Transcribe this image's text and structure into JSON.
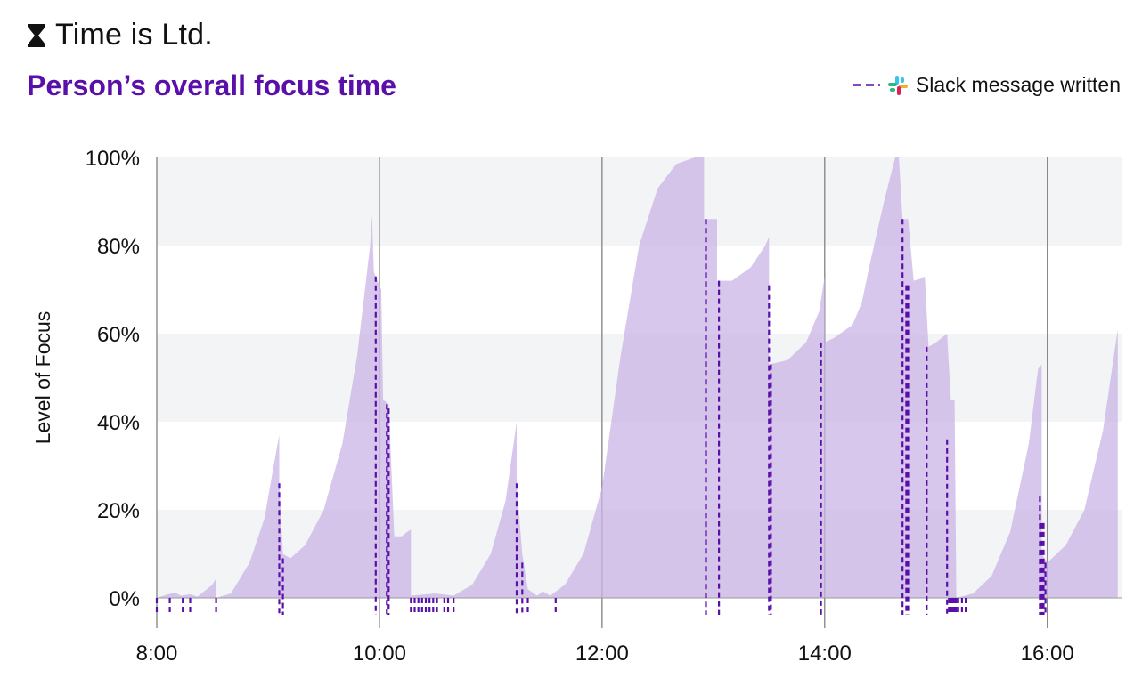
{
  "brand": {
    "name": "Time is Ltd.",
    "icon": "hourglass-icon"
  },
  "legend": {
    "label": "Slack message written",
    "icon": "slack-icon",
    "line_style": "dashed"
  },
  "colors": {
    "title": "#5a0fa8",
    "area": "#c9b4e6",
    "marker": "#5a0fa8",
    "band": "#f3f4f5",
    "grid": "#8a8a8a"
  },
  "chart_data": {
    "type": "area",
    "title": "Person’s overall focus time",
    "xlabel": "",
    "ylabel": "Level of Focus",
    "x_unit": "hours",
    "xlim": [
      "8:00",
      "16:40"
    ],
    "ylim": [
      0,
      100
    ],
    "x_ticks": [
      "8:00",
      "10:00",
      "12:00",
      "14:00",
      "16:00"
    ],
    "y_ticks": [
      "0%",
      "20%",
      "40%",
      "60%",
      "80%",
      "100%"
    ],
    "grid": true,
    "legend_position": "top-right",
    "series": [
      {
        "kind": "area",
        "points": [
          [
            "8:00",
            0
          ],
          [
            "8:06",
            0.8
          ],
          [
            "8:10",
            1.2
          ],
          [
            "8:13",
            0.5
          ],
          [
            "8:18",
            0.8
          ],
          [
            "8:22",
            0.3
          ],
          [
            "8:30",
            3
          ],
          [
            "8:32",
            4.5
          ],
          [
            "8:32",
            0
          ],
          [
            "8:40",
            1
          ],
          [
            "8:50",
            8
          ],
          [
            "8:58",
            18
          ],
          [
            "9:03",
            30
          ],
          [
            "9:06",
            37
          ],
          [
            "9:06",
            26
          ],
          [
            "9:08",
            10
          ],
          [
            "9:12",
            9
          ],
          [
            "9:20",
            12
          ],
          [
            "9:30",
            20
          ],
          [
            "9:40",
            35
          ],
          [
            "9:48",
            55
          ],
          [
            "9:55",
            80
          ],
          [
            "9:56",
            87
          ],
          [
            "9:57",
            74
          ],
          [
            "10:01",
            70
          ],
          [
            "10:02",
            45
          ],
          [
            "10:05",
            44
          ],
          [
            "10:08",
            14
          ],
          [
            "10:12",
            14
          ],
          [
            "10:15",
            15
          ],
          [
            "10:17",
            15.5
          ],
          [
            "10:17",
            0.5
          ],
          [
            "10:30",
            1
          ],
          [
            "10:40",
            0.5
          ],
          [
            "10:50",
            3
          ],
          [
            "11:00",
            10
          ],
          [
            "11:08",
            22
          ],
          [
            "11:14",
            40
          ],
          [
            "11:14",
            26
          ],
          [
            "11:17",
            10
          ],
          [
            "11:20",
            2
          ],
          [
            "11:25",
            0.5
          ],
          [
            "11:28",
            1.5
          ],
          [
            "11:32",
            0.5
          ],
          [
            "11:40",
            3
          ],
          [
            "11:50",
            10
          ],
          [
            "12:00",
            25
          ],
          [
            "12:10",
            55
          ],
          [
            "12:20",
            80
          ],
          [
            "12:30",
            93
          ],
          [
            "12:40",
            98.5
          ],
          [
            "12:50",
            100
          ],
          [
            "12:55",
            100
          ],
          [
            "12:55",
            86
          ],
          [
            "13:02",
            86
          ],
          [
            "13:02",
            72
          ],
          [
            "13:10",
            72
          ],
          [
            "13:20",
            75
          ],
          [
            "13:28",
            80
          ],
          [
            "13:30",
            82
          ],
          [
            "13:30",
            53
          ],
          [
            "13:40",
            54
          ],
          [
            "13:50",
            58
          ],
          [
            "13:57",
            65
          ],
          [
            "14:00",
            73
          ],
          [
            "14:00",
            58
          ],
          [
            "14:05",
            59
          ],
          [
            "14:15",
            62
          ],
          [
            "14:20",
            67
          ],
          [
            "14:25",
            77
          ],
          [
            "14:32",
            90
          ],
          [
            "14:38",
            100
          ],
          [
            "14:40",
            100
          ],
          [
            "14:42",
            86
          ],
          [
            "14:45",
            86
          ],
          [
            "14:48",
            72
          ],
          [
            "14:52",
            72.5
          ],
          [
            "14:54",
            73
          ],
          [
            "14:56",
            57
          ],
          [
            "15:00",
            58
          ],
          [
            "15:06",
            60
          ],
          [
            "15:08",
            45
          ],
          [
            "15:10",
            45
          ],
          [
            "15:11",
            0
          ],
          [
            "15:20",
            1
          ],
          [
            "15:30",
            5
          ],
          [
            "15:40",
            15
          ],
          [
            "15:50",
            35
          ],
          [
            "15:55",
            52
          ],
          [
            "15:57",
            53
          ],
          [
            "15:57",
            10
          ],
          [
            "16:00",
            8
          ],
          [
            "16:10",
            12
          ],
          [
            "16:20",
            20
          ],
          [
            "16:30",
            38
          ],
          [
            "16:38",
            61
          ],
          [
            "16:38",
            0
          ]
        ]
      },
      {
        "name": "Slack message written",
        "kind": "markers",
        "points": [
          [
            "8:00",
            0
          ],
          [
            "8:07",
            0
          ],
          [
            "8:14",
            0
          ],
          [
            "8:18",
            0
          ],
          [
            "8:32",
            0
          ],
          [
            "9:06",
            26
          ],
          [
            "9:08",
            9
          ],
          [
            "9:58",
            73
          ],
          [
            "10:04",
            44
          ],
          [
            "10:05",
            43
          ],
          [
            "10:17",
            0
          ],
          [
            "10:19",
            0
          ],
          [
            "10:21",
            0
          ],
          [
            "10:23",
            0
          ],
          [
            "10:25",
            0
          ],
          [
            "10:27",
            0
          ],
          [
            "10:29",
            0
          ],
          [
            "10:31",
            0
          ],
          [
            "10:35",
            0
          ],
          [
            "10:37",
            0
          ],
          [
            "10:40",
            0
          ],
          [
            "11:14",
            26
          ],
          [
            "11:17",
            8
          ],
          [
            "11:20",
            0
          ],
          [
            "11:35",
            0
          ],
          [
            "12:56",
            86
          ],
          [
            "13:03",
            72
          ],
          [
            "13:30",
            71
          ],
          [
            "13:31",
            53
          ],
          [
            "13:58",
            58
          ],
          [
            "14:42",
            86
          ],
          [
            "14:44",
            71
          ],
          [
            "14:45",
            71
          ],
          [
            "14:55",
            57
          ],
          [
            "15:06",
            36
          ],
          [
            "15:07",
            0
          ],
          [
            "15:08",
            0
          ],
          [
            "15:09",
            0
          ],
          [
            "15:10",
            0
          ],
          [
            "15:11",
            0
          ],
          [
            "15:12",
            0
          ],
          [
            "15:14",
            0
          ],
          [
            "15:16",
            0
          ],
          [
            "15:56",
            23
          ],
          [
            "15:57",
            17
          ],
          [
            "15:58",
            17
          ],
          [
            "15:59",
            8
          ]
        ]
      }
    ]
  }
}
